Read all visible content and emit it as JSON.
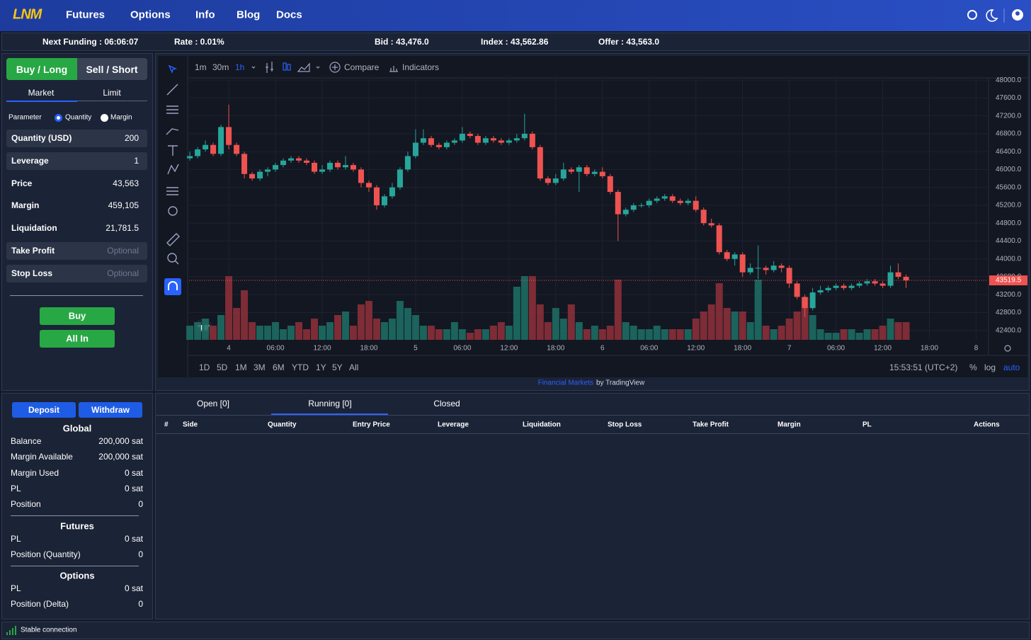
{
  "nav": {
    "logo": "LNM",
    "items": [
      "Futures",
      "Options",
      "Info",
      "Blog",
      "Docs"
    ]
  },
  "ticker": [
    "Next Funding : 06:06:07",
    "Rate : 0.01%",
    "Bid : 43,476.0",
    "Index : 43,562.86",
    "Offer : 43,563.0"
  ],
  "order": {
    "sides": [
      "Buy / Long",
      "Sell / Short"
    ],
    "types": [
      "Market",
      "Limit"
    ],
    "parameter": {
      "label": "Parameter",
      "options": [
        "Quantity",
        "Margin"
      ]
    },
    "fields": [
      [
        "Quantity (USD)",
        "200"
      ],
      [
        "Leverage",
        "1"
      ],
      [
        "Price",
        "43,563"
      ],
      [
        "Margin",
        "459,105"
      ],
      [
        "Liquidation",
        "21,781.5"
      ],
      [
        "Take Profit",
        "Optional"
      ],
      [
        "Stop Loss",
        "Optional"
      ]
    ],
    "buttons": [
      "Buy",
      "All In"
    ]
  },
  "account": {
    "buttons": [
      "Deposit",
      "Withdraw"
    ],
    "sections": [
      {
        "title": "Global",
        "rows": [
          [
            "Balance",
            "200,000 sat"
          ],
          [
            "Margin Available",
            "200,000 sat"
          ],
          [
            "Margin Used",
            "0 sat"
          ],
          [
            "PL",
            "0 sat"
          ],
          [
            "Position",
            "0"
          ]
        ]
      },
      {
        "title": "Futures",
        "rows": [
          [
            "PL",
            "0 sat"
          ],
          [
            "Position (Quantity)",
            "0"
          ]
        ]
      },
      {
        "title": "Options",
        "rows": [
          [
            "PL",
            "0 sat"
          ],
          [
            "Position (Delta)",
            "0"
          ]
        ]
      }
    ]
  },
  "chart_toolbar": {
    "intervals": [
      "1m",
      "30m",
      "1h"
    ],
    "compare": "Compare",
    "indicators": "Indicators"
  },
  "chart_footer": {
    "ranges": [
      "1D",
      "5D",
      "1M",
      "3M",
      "6M",
      "YTD",
      "1Y",
      "5Y",
      "All"
    ],
    "time": "15:53:51 (UTC+2)",
    "options": [
      "%",
      "log",
      "auto"
    ]
  },
  "attribution": {
    "link": "Financial Markets",
    "text": "by TradingView"
  },
  "chart_data": {
    "type": "candlestick",
    "up_color": "#26a69a",
    "down_color": "#ef5350",
    "xlim": [
      -5.1,
      97.5
    ],
    "ylim": [
      42190,
      48050
    ],
    "xticks": [
      {
        "value": 0,
        "label": "4"
      },
      {
        "value": 6,
        "label": "06:00"
      },
      {
        "value": 12,
        "label": "12:00"
      },
      {
        "value": 18,
        "label": "18:00"
      },
      {
        "value": 24,
        "label": "5"
      },
      {
        "value": 30,
        "label": "06:00"
      },
      {
        "value": 36,
        "label": "12:00"
      },
      {
        "value": 42,
        "label": "18:00"
      },
      {
        "value": 48,
        "label": "6"
      },
      {
        "value": 54,
        "label": "06:00"
      },
      {
        "value": 60,
        "label": "12:00"
      },
      {
        "value": 66,
        "label": "18:00"
      },
      {
        "value": 72,
        "label": "7"
      },
      {
        "value": 78,
        "label": "06:00"
      },
      {
        "value": 84,
        "label": "12:00"
      },
      {
        "value": 90,
        "label": "18:00"
      },
      {
        "value": 96,
        "label": "8"
      }
    ],
    "yticks": [
      {
        "value": 42400,
        "label": "42400.0"
      },
      {
        "value": 42800,
        "label": "42800.0"
      },
      {
        "value": 43200,
        "label": "43200.0"
      },
      {
        "value": 43600,
        "label": "43600.0"
      },
      {
        "value": 44000,
        "label": "44000.0"
      },
      {
        "value": 44400,
        "label": "44400.0"
      },
      {
        "value": 44800,
        "label": "44800.0"
      },
      {
        "value": 45200,
        "label": "45200.0"
      },
      {
        "value": 45600,
        "label": "45600.0"
      },
      {
        "value": 46000,
        "label": "46000.0"
      },
      {
        "value": 46400,
        "label": "46400.0"
      },
      {
        "value": 46800,
        "label": "46800.0"
      },
      {
        "value": 47200,
        "label": "47200.0"
      },
      {
        "value": 47600,
        "label": "47600.0"
      },
      {
        "value": 48000,
        "label": "48000.0"
      }
    ],
    "last_price": 43519.5,
    "x": [
      -5,
      -4,
      -3,
      -2,
      -1,
      0,
      1,
      2,
      3,
      4,
      5,
      6,
      7,
      8,
      9,
      10,
      11,
      12,
      13,
      14,
      15,
      16,
      17,
      18,
      19,
      20,
      21,
      22,
      23,
      24,
      25,
      26,
      27,
      28,
      29,
      30,
      31,
      32,
      33,
      34,
      35,
      36,
      37,
      38,
      39,
      40,
      41,
      42,
      43,
      44,
      45,
      46,
      47,
      48,
      49,
      50,
      51,
      52,
      53,
      54,
      55,
      56,
      57,
      58,
      59,
      60,
      61,
      62,
      63,
      64,
      65,
      66,
      67,
      68,
      69,
      70,
      71,
      72,
      73,
      74,
      75,
      76,
      77,
      78,
      79,
      80,
      81,
      82,
      83,
      84,
      85,
      86,
      87
    ],
    "open": [
      46250,
      46300,
      46450,
      46550,
      46350,
      46950,
      46550,
      46350,
      45900,
      45800,
      45950,
      46000,
      46100,
      46200,
      46250,
      46200,
      46150,
      45950,
      46000,
      46150,
      46050,
      46100,
      46000,
      45700,
      45600,
      45200,
      45400,
      45600,
      46000,
      46300,
      46600,
      46700,
      46550,
      46500,
      46600,
      46650,
      46800,
      46750,
      46600,
      46700,
      46650,
      46600,
      46650,
      46700,
      46800,
      46500,
      45800,
      45700,
      45800,
      46000,
      45950,
      46050,
      45900,
      45950,
      45850,
      45500,
      45000,
      45100,
      45200,
      45200,
      45300,
      45350,
      45400,
      45300,
      45250,
      45300,
      45100,
      44800,
      44750,
      44150,
      44000,
      44100,
      43700,
      43800,
      43800,
      43750,
      43850,
      43800,
      43450,
      43150,
      42900,
      43250,
      43300,
      43350,
      43400,
      43350,
      43400,
      43450,
      43500,
      43450,
      43400,
      43700,
      43600
    ],
    "high": [
      46400,
      46500,
      46650,
      46600,
      47000,
      47450,
      46600,
      46400,
      45950,
      46000,
      46050,
      46150,
      46250,
      46300,
      46300,
      46250,
      46200,
      46100,
      46200,
      46200,
      46300,
      46150,
      46050,
      45750,
      45650,
      45450,
      45700,
      46050,
      46400,
      46900,
      46900,
      46750,
      46600,
      46650,
      46700,
      46950,
      46850,
      46800,
      46750,
      46750,
      46700,
      46700,
      46800,
      47250,
      46850,
      46550,
      45850,
      45900,
      46150,
      46050,
      46100,
      46100,
      46000,
      46050,
      45900,
      45550,
      45150,
      45250,
      45250,
      45350,
      45400,
      45450,
      45450,
      45350,
      45350,
      45400,
      45150,
      44900,
      44800,
      44200,
      44150,
      44150,
      43900,
      44300,
      43850,
      43950,
      43900,
      43850,
      43500,
      43200,
      43350,
      43400,
      43400,
      43450,
      43450,
      43450,
      43500,
      43550,
      43550,
      43500,
      43850,
      43900,
      43650
    ],
    "low": [
      46200,
      46250,
      46400,
      46300,
      46300,
      46450,
      46300,
      45800,
      45750,
      45750,
      45850,
      45950,
      46050,
      46150,
      46150,
      46100,
      45900,
      45900,
      45950,
      46000,
      46000,
      45950,
      45600,
      45500,
      45100,
      45150,
      45350,
      45550,
      45950,
      46250,
      46550,
      46500,
      46450,
      46450,
      46550,
      46600,
      46700,
      46550,
      46550,
      46600,
      46550,
      46550,
      46600,
      46650,
      46450,
      45750,
      45650,
      45650,
      45750,
      45900,
      45500,
      45850,
      45850,
      45800,
      45450,
      44400,
      44950,
      45050,
      45150,
      45150,
      45250,
      45300,
      45250,
      45200,
      45200,
      45050,
      44750,
      44700,
      44100,
      43950,
      43850,
      43600,
      43650,
      43550,
      43650,
      43700,
      43700,
      43350,
      43100,
      42700,
      42850,
      43200,
      43250,
      43300,
      43300,
      43300,
      43350,
      43400,
      43400,
      43350,
      43350,
      43550,
      43350
    ],
    "close": [
      46300,
      46450,
      46550,
      46350,
      46950,
      46550,
      46350,
      45900,
      45800,
      45950,
      46000,
      46100,
      46200,
      46250,
      46200,
      46150,
      45950,
      46000,
      46150,
      46050,
      46100,
      46000,
      45700,
      45600,
      45200,
      45400,
      45600,
      46000,
      46300,
      46600,
      46700,
      46550,
      46500,
      46600,
      46650,
      46800,
      46750,
      46600,
      46700,
      46650,
      46600,
      46650,
      46700,
      46800,
      46500,
      45800,
      45700,
      45800,
      46000,
      45950,
      46050,
      45900,
      45950,
      45850,
      45500,
      45000,
      45100,
      45200,
      45200,
      45300,
      45350,
      45400,
      45300,
      45250,
      45300,
      45100,
      44800,
      44750,
      44150,
      44000,
      44100,
      43700,
      43800,
      43800,
      43750,
      43850,
      43800,
      43450,
      43150,
      42900,
      43250,
      43300,
      43350,
      43400,
      43350,
      43400,
      43450,
      43500,
      43450,
      43400,
      43700,
      43600,
      43520
    ],
    "volume": [
      20,
      25,
      30,
      20,
      35,
      90,
      45,
      70,
      25,
      20,
      20,
      25,
      15,
      20,
      25,
      15,
      30,
      20,
      25,
      35,
      40,
      20,
      50,
      55,
      30,
      25,
      30,
      55,
      45,
      35,
      20,
      20,
      15,
      15,
      25,
      15,
      10,
      15,
      15,
      20,
      25,
      20,
      75,
      90,
      90,
      50,
      25,
      45,
      30,
      50,
      25,
      15,
      20,
      15,
      20,
      85,
      25,
      20,
      15,
      15,
      20,
      15,
      15,
      15,
      15,
      30,
      40,
      50,
      80,
      45,
      40,
      40,
      25,
      85,
      20,
      15,
      20,
      30,
      40,
      60,
      35,
      15,
      10,
      10,
      15,
      15,
      10,
      15,
      15,
      20,
      30,
      25,
      25
    ]
  },
  "positions": {
    "tabs": [
      "Open [0]",
      "Running [0]",
      "Closed"
    ],
    "columns": [
      "#",
      "Side",
      "Quantity",
      "Entry Price",
      "Leverage",
      "Liquidation",
      "Stop Loss",
      "Take Profit",
      "Margin",
      "PL",
      "Actions"
    ]
  },
  "status": "Stable connection"
}
